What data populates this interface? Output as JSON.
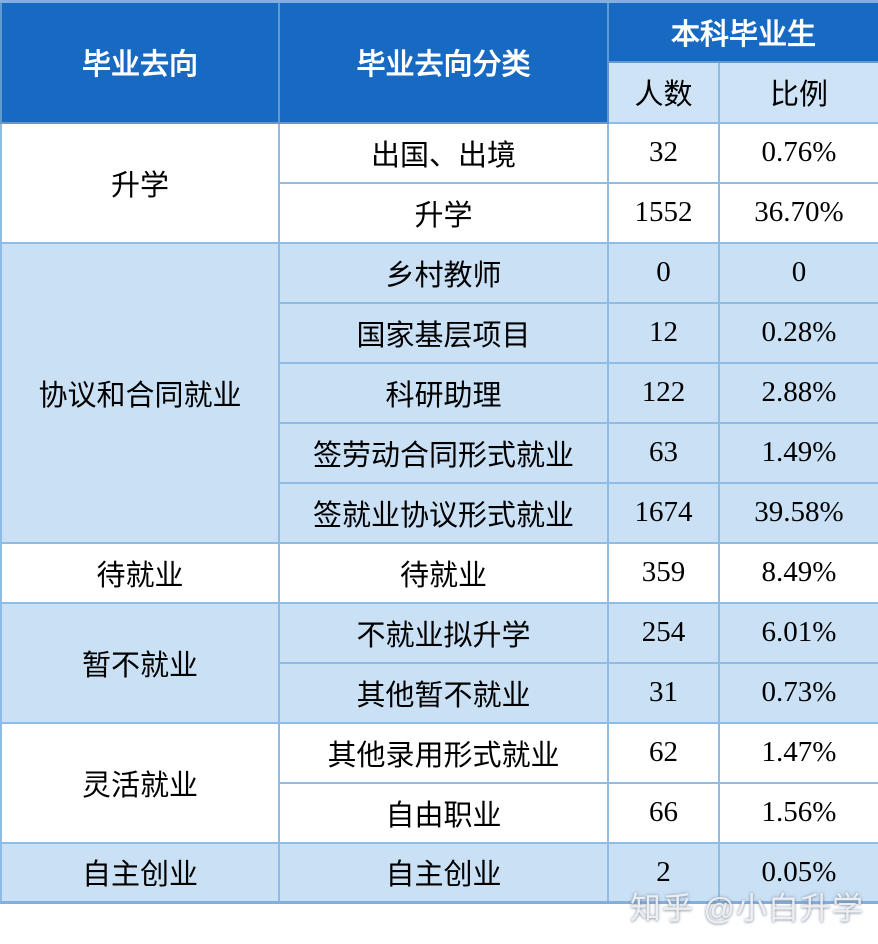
{
  "table": {
    "header": {
      "col_destination": "毕业去向",
      "col_category": "毕业去向分类",
      "col_group": "本科毕业生",
      "sub_count": "人数",
      "sub_ratio": "比例"
    },
    "groups": [
      {
        "label": "升学",
        "shaded": false,
        "rows": [
          {
            "category": "出国、出境",
            "count": "32",
            "ratio": "0.76%"
          },
          {
            "category": "升学",
            "count": "1552",
            "ratio": "36.70%"
          }
        ]
      },
      {
        "label": "协议和合同就业",
        "shaded": true,
        "rows": [
          {
            "category": "乡村教师",
            "count": "0",
            "ratio": "0"
          },
          {
            "category": "国家基层项目",
            "count": "12",
            "ratio": "0.28%"
          },
          {
            "category": "科研助理",
            "count": "122",
            "ratio": "2.88%"
          },
          {
            "category": "签劳动合同形式就业",
            "count": "63",
            "ratio": "1.49%"
          },
          {
            "category": "签就业协议形式就业",
            "count": "1674",
            "ratio": "39.58%"
          }
        ]
      },
      {
        "label": "待就业",
        "shaded": false,
        "rows": [
          {
            "category": "待就业",
            "count": "359",
            "ratio": "8.49%"
          }
        ]
      },
      {
        "label": "暂不就业",
        "shaded": true,
        "rows": [
          {
            "category": "不就业拟升学",
            "count": "254",
            "ratio": "6.01%"
          },
          {
            "category": "其他暂不就业",
            "count": "31",
            "ratio": "0.73%"
          }
        ]
      },
      {
        "label": "灵活就业",
        "shaded": false,
        "rows": [
          {
            "category": "其他录用形式就业",
            "count": "62",
            "ratio": "1.47%"
          },
          {
            "category": "自由职业",
            "count": "66",
            "ratio": "1.56%"
          }
        ]
      },
      {
        "label": "自主创业",
        "shaded": true,
        "rows": [
          {
            "category": "自主创业",
            "count": "2",
            "ratio": "0.05%"
          }
        ]
      }
    ]
  },
  "watermark": "知乎 @小白升学",
  "colors": {
    "header_bg": "#1769c1",
    "header_text": "#ffffff",
    "subheader_bg": "#cfe3f6",
    "shaded_row_bg": "#c9e0f5",
    "plain_row_bg": "#ffffff",
    "border": "#8fbce6",
    "body_text": "#000000"
  },
  "chart_data": {
    "type": "table",
    "columns": [
      "毕业去向",
      "毕业去向分类",
      "人数",
      "比例"
    ],
    "column_group": {
      "label": "本科毕业生",
      "spans": [
        "人数",
        "比例"
      ]
    },
    "rows": [
      [
        "升学",
        "出国、出境",
        32,
        "0.76%"
      ],
      [
        "升学",
        "升学",
        1552,
        "36.70%"
      ],
      [
        "协议和合同就业",
        "乡村教师",
        0,
        "0"
      ],
      [
        "协议和合同就业",
        "国家基层项目",
        12,
        "0.28%"
      ],
      [
        "协议和合同就业",
        "科研助理",
        122,
        "2.88%"
      ],
      [
        "协议和合同就业",
        "签劳动合同形式就业",
        63,
        "1.49%"
      ],
      [
        "协议和合同就业",
        "签就业协议形式就业",
        1674,
        "39.58%"
      ],
      [
        "待就业",
        "待就业",
        359,
        "8.49%"
      ],
      [
        "暂不就业",
        "不就业拟升学",
        254,
        "6.01%"
      ],
      [
        "暂不就业",
        "其他暂不就业",
        31,
        "0.73%"
      ],
      [
        "灵活就业",
        "其他录用形式就业",
        62,
        "1.47%"
      ],
      [
        "灵活就业",
        "自由职业",
        66,
        "1.56%"
      ],
      [
        "自主创业",
        "自主创业",
        2,
        "0.05%"
      ]
    ]
  }
}
